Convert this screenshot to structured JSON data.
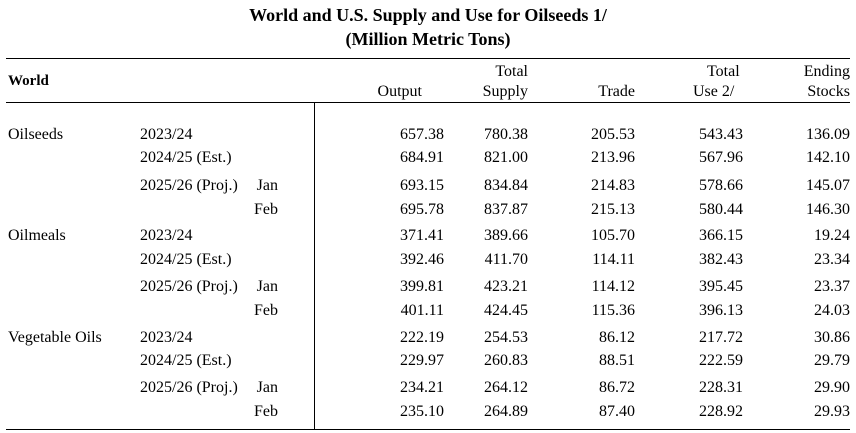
{
  "title": {
    "line1": "World and U.S. Supply and Use for Oilseeds  1/",
    "line2": "(Million Metric Tons)"
  },
  "header": {
    "region": "World",
    "columns": [
      {
        "line1": "",
        "line2": "Output"
      },
      {
        "line1": "Total",
        "line2": "Supply"
      },
      {
        "line1": "",
        "line2": "Trade"
      },
      {
        "line1": "Total",
        "line2": "Use  2/"
      },
      {
        "line1": "Ending",
        "line2": "Stocks"
      }
    ]
  },
  "groups": [
    {
      "commodity": "Oilseeds",
      "rows": [
        {
          "year": "2023/24",
          "month": "",
          "values": [
            "657.38",
            "780.38",
            "205.53",
            "543.43",
            "136.09"
          ]
        },
        {
          "year": "2024/25 (Est.)",
          "month": "",
          "values": [
            "684.91",
            "821.00",
            "213.96",
            "567.96",
            "142.10"
          ]
        },
        {
          "year": "2025/26 (Proj.)",
          "month": "Jan",
          "values": [
            "693.15",
            "834.84",
            "214.83",
            "578.66",
            "145.07"
          ]
        },
        {
          "year": "",
          "month": "Feb",
          "values": [
            "695.78",
            "837.87",
            "215.13",
            "580.44",
            "146.30"
          ]
        }
      ]
    },
    {
      "commodity": "Oilmeals",
      "rows": [
        {
          "year": "2023/24",
          "month": "",
          "values": [
            "371.41",
            "389.66",
            "105.70",
            "366.15",
            "19.24"
          ]
        },
        {
          "year": "2024/25 (Est.)",
          "month": "",
          "values": [
            "392.46",
            "411.70",
            "114.11",
            "382.43",
            "23.34"
          ]
        },
        {
          "year": "2025/26 (Proj.)",
          "month": "Jan",
          "values": [
            "399.81",
            "423.21",
            "114.12",
            "395.45",
            "23.37"
          ]
        },
        {
          "year": "",
          "month": "Feb",
          "values": [
            "401.11",
            "424.45",
            "115.36",
            "396.13",
            "24.03"
          ]
        }
      ]
    },
    {
      "commodity": "Vegetable Oils",
      "rows": [
        {
          "year": "2023/24",
          "month": "",
          "values": [
            "222.19",
            "254.53",
            "86.12",
            "217.72",
            "30.86"
          ]
        },
        {
          "year": "2024/25 (Est.)",
          "month": "",
          "values": [
            "229.97",
            "260.83",
            "88.51",
            "222.59",
            "29.79"
          ]
        },
        {
          "year": "2025/26 (Proj.)",
          "month": "Jan",
          "values": [
            "234.21",
            "264.12",
            "86.72",
            "228.31",
            "29.90"
          ]
        },
        {
          "year": "",
          "month": "Feb",
          "values": [
            "235.10",
            "264.89",
            "87.40",
            "228.92",
            "29.93"
          ]
        }
      ]
    }
  ]
}
